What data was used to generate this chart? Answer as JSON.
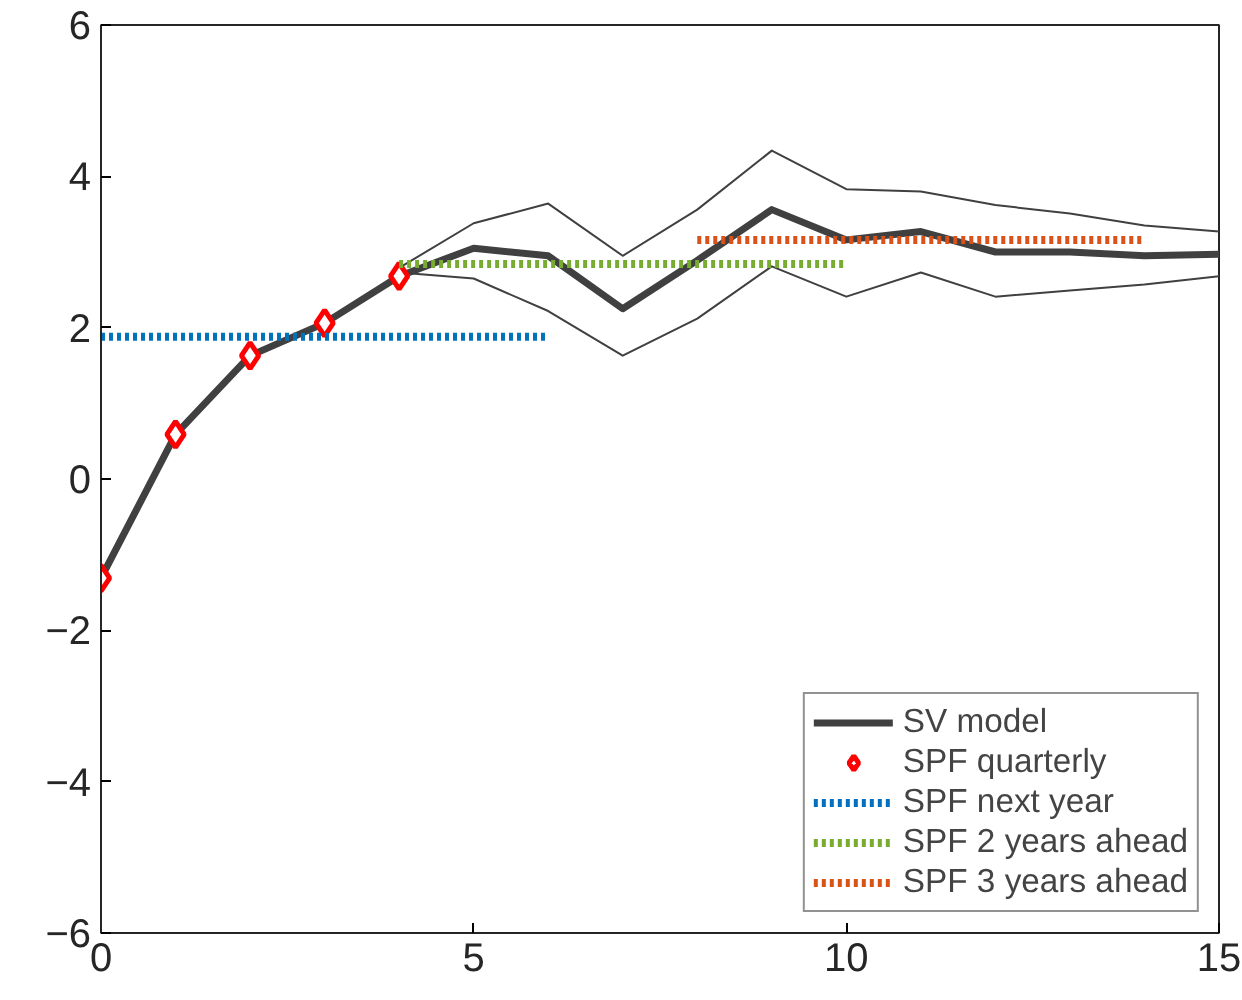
{
  "chart_data": {
    "type": "line",
    "xlim": [
      0,
      15
    ],
    "ylim": [
      -6,
      6
    ],
    "xticks": [
      0,
      5,
      10,
      15
    ],
    "yticks": [
      -6,
      -4,
      -2,
      0,
      2,
      4,
      6
    ],
    "grid": false,
    "legend": "bottom right",
    "series": [
      {
        "name": "SV model",
        "color": "#404040",
        "x": [
          0,
          1,
          2,
          3,
          4,
          5,
          6,
          7,
          8,
          9,
          10,
          11,
          12,
          13,
          14,
          15
        ],
        "values": [
          -1.31,
          0.59,
          1.63,
          2.06,
          2.68,
          3.05,
          2.95,
          2.25,
          2.89,
          3.56,
          3.16,
          3.27,
          3.0,
          3.0,
          2.95,
          2.97
        ],
        "line_style": "solid",
        "marker": "none"
      },
      {
        "color": "#404040",
        "x": [
          4,
          5,
          6,
          7,
          8,
          9,
          10,
          11,
          12,
          13,
          14,
          15
        ],
        "values": [
          2.79,
          3.38,
          3.64,
          2.95,
          3.56,
          4.34,
          3.83,
          3.8,
          3.62,
          3.51,
          3.35,
          3.27
        ],
        "line_style": "solid",
        "marker": "none"
      },
      {
        "color": "#404040",
        "x": [
          4,
          5,
          6,
          7,
          8,
          9,
          10,
          11,
          12,
          13,
          14,
          15
        ],
        "values": [
          2.73,
          2.65,
          2.22,
          1.63,
          2.12,
          2.81,
          2.41,
          2.73,
          2.41,
          2.49,
          2.57,
          2.68
        ],
        "line_style": "solid",
        "marker": "none"
      },
      {
        "name": "SPF quarterly",
        "type": "scatter",
        "color": "#ff0000",
        "x": [
          0,
          1,
          2,
          3,
          4
        ],
        "values": [
          -1.31,
          0.59,
          1.63,
          2.06,
          2.68
        ],
        "marker": "diamond"
      },
      {
        "name": "SPF next year",
        "color": "#0072bd",
        "x": [
          0,
          6
        ],
        "values": [
          1.88,
          1.88
        ],
        "line_style": "dotted",
        "marker": "none"
      },
      {
        "name": "SPF 2 years ahead",
        "color": "#77ac30",
        "x": [
          4,
          10
        ],
        "values": [
          2.84,
          2.84
        ],
        "line_style": "dotted",
        "marker": "none"
      },
      {
        "name": "SPF 3 years ahead",
        "color": "#d95319",
        "x": [
          8,
          14
        ],
        "values": [
          3.16,
          3.16
        ],
        "line_style": "dotted",
        "marker": "none"
      }
    ]
  }
}
